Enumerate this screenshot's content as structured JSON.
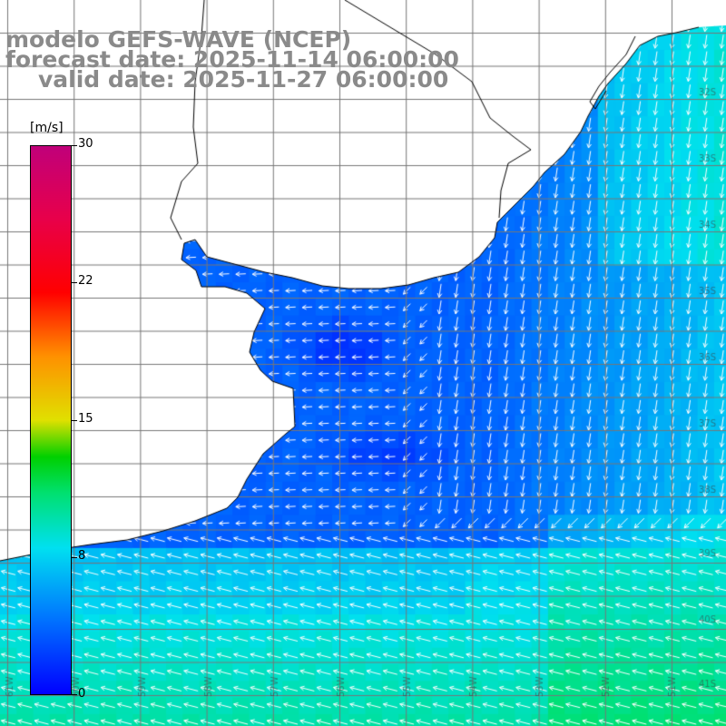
{
  "header": {
    "line1": "modelo GEFS-WAVE (NCEP)",
    "line2": "forecast date: 2025-11-14 06:00:00",
    "line3": "valid date: 2025-11-27 06:00:00"
  },
  "colorbar": {
    "unit": "[m/s]",
    "ticks": [
      {
        "label": "30",
        "value": 30
      },
      {
        "label": "22",
        "value": 22
      },
      {
        "label": "15",
        "value": 15
      },
      {
        "label": "8",
        "value": 8
      },
      {
        "label": "0",
        "value": 0
      }
    ],
    "min": 0,
    "max": 30,
    "stops": [
      {
        "value": 0,
        "color": "#0000ff"
      },
      {
        "value": 4,
        "color": "#0070ff"
      },
      {
        "value": 8,
        "color": "#00e0f0"
      },
      {
        "value": 11,
        "color": "#00e070"
      },
      {
        "value": 13,
        "color": "#00d000"
      },
      {
        "value": 15,
        "color": "#e0e000"
      },
      {
        "value": 18.5,
        "color": "#ff9000"
      },
      {
        "value": 22,
        "color": "#ff0000"
      },
      {
        "value": 26,
        "color": "#e8004a"
      },
      {
        "value": 30,
        "color": "#c0007a"
      }
    ]
  },
  "grid_labels": {
    "lat": [
      "32S",
      "33S",
      "34S",
      "35S",
      "36S",
      "37S",
      "38S",
      "39S",
      "40S",
      "41S"
    ],
    "lon": [
      "61W",
      "60W",
      "59W",
      "58W",
      "57W",
      "56W",
      "55W",
      "54W",
      "53W",
      "52W",
      "51W"
    ]
  },
  "colors": {
    "land": "#ffffff",
    "coast": "#000000",
    "grid": "#777777",
    "arrow": "#ffffff",
    "title": "#8a8a8a"
  }
}
